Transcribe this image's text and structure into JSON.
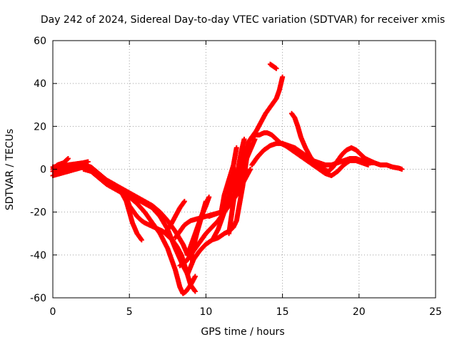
{
  "chart_data": {
    "type": "scatter",
    "title": "Day 242 of 2024, Sidereal Day-to-day VTEC variation (SDTVAR) for receiver xmis",
    "xlabel": "GPS time / hours",
    "ylabel": "SDTVAR / TECUs",
    "xlim": [
      0,
      25
    ],
    "ylim": [
      -60,
      60
    ],
    "xticks": [
      "0",
      "5",
      "10",
      "15",
      "20",
      "25"
    ],
    "yticks": [
      "-60",
      "-40",
      "-20",
      "0",
      "20",
      "40",
      "60"
    ],
    "grid": true,
    "marker": "+",
    "color": "#ff0000",
    "series": [
      {
        "name": "track-1",
        "x": [
          0.0,
          0.3,
          0.7,
          1.0
        ],
        "y": [
          0,
          2,
          3,
          5
        ]
      },
      {
        "name": "track-2",
        "x": [
          0.0,
          0.5,
          1.0,
          1.5,
          2.0,
          2.3
        ],
        "y": [
          1,
          1.5,
          2,
          2.5,
          3,
          3.5
        ]
      },
      {
        "name": "track-3",
        "x": [
          0.0,
          0.5,
          1.0,
          1.5,
          2.0,
          2.5,
          3.0,
          3.5,
          4.0,
          4.5,
          5.0,
          5.5,
          6.0,
          6.5,
          7.0,
          7.5,
          8.0,
          8.3,
          8.5,
          8.7,
          9.0,
          9.3
        ],
        "y": [
          -3,
          -2,
          -1,
          0,
          1,
          -1,
          -4,
          -7,
          -9,
          -11,
          -13,
          -16,
          -20,
          -25,
          -30,
          -37,
          -47,
          -55,
          -58,
          -57,
          -54,
          -50
        ]
      },
      {
        "name": "track-4",
        "x": [
          0.0,
          0.5,
          1.0,
          1.5,
          2.0,
          2.5,
          3.0,
          3.5,
          4.0,
          4.5,
          5.0,
          5.5,
          6.0,
          6.5,
          7.0,
          7.5,
          8.0,
          8.5,
          8.8
        ],
        "y": [
          -1,
          0,
          0.5,
          1,
          2,
          1,
          -2,
          -5,
          -8,
          -10,
          -12,
          -14,
          -16,
          -18,
          -22,
          -28,
          -37,
          -45,
          -49
        ]
      },
      {
        "name": "track-5",
        "x": [
          2.0,
          2.5,
          3.0,
          3.5,
          4.0,
          4.5,
          5.0,
          5.5,
          6.0,
          6.5,
          7.0,
          7.5,
          8.0,
          8.5,
          8.8
        ],
        "y": [
          0,
          -1,
          -3,
          -5,
          -7,
          -9,
          -11,
          -13,
          -15,
          -17,
          -20,
          -24,
          -29,
          -35,
          -40
        ]
      },
      {
        "name": "track-6",
        "x": [
          4.5,
          4.8,
          5.0,
          5.2,
          5.5,
          5.8
        ],
        "y": [
          -11,
          -15,
          -20,
          -25,
          -30,
          -33
        ]
      },
      {
        "name": "track-7",
        "x": [
          4.8,
          5.0,
          5.3,
          5.5,
          5.8,
          6.0,
          6.3,
          6.6,
          6.9,
          7.2,
          7.5,
          7.8,
          8.1,
          8.4,
          8.7,
          9.0,
          9.3
        ],
        "y": [
          -13,
          -17,
          -20,
          -22,
          -24,
          -25,
          -26,
          -27,
          -28,
          -29,
          -31,
          -33,
          -36,
          -40,
          -47,
          -54,
          -57
        ]
      },
      {
        "name": "track-8",
        "x": [
          7.4,
          7.7,
          8.0,
          8.3,
          8.6
        ],
        "y": [
          -29,
          -26,
          -22,
          -18,
          -15
        ]
      },
      {
        "name": "track-9",
        "x": [
          8.0,
          8.3,
          8.6,
          9.0,
          9.5,
          10.0,
          10.5,
          11.0,
          11.5,
          12.0,
          12.3,
          12.6,
          12.9,
          13.2
        ],
        "y": [
          -32,
          -29,
          -26,
          -24,
          -23,
          -22,
          -21,
          -20,
          -16,
          -10,
          -3,
          4,
          9,
          14
        ]
      },
      {
        "name": "track-10",
        "x": [
          8.3,
          8.7,
          9.0,
          9.3,
          9.6,
          10.0,
          10.4,
          10.8,
          11.2,
          11.6,
          12.0,
          12.3,
          12.6,
          12.9
        ],
        "y": [
          -45,
          -43,
          -40,
          -37,
          -34,
          -30,
          -27,
          -24,
          -20,
          -16,
          -12,
          -8,
          -4,
          0
        ]
      },
      {
        "name": "track-11",
        "x": [
          8.8,
          9.2,
          9.6,
          10.0,
          10.4,
          10.8,
          11.2,
          11.5,
          11.8,
          12.0,
          12.2,
          12.4,
          12.6,
          12.8
        ],
        "y": [
          -49,
          -42,
          -38,
          -35,
          -33,
          -32,
          -30,
          -29,
          -27,
          -24,
          -16,
          -8,
          2,
          12
        ]
      },
      {
        "name": "track-12",
        "x": [
          8.8,
          9.1,
          9.4,
          9.7,
          10.0,
          10.2
        ],
        "y": [
          -40,
          -34,
          -28,
          -22,
          -17,
          -13
        ]
      },
      {
        "name": "track-13",
        "x": [
          9.0,
          9.2,
          9.4,
          9.6,
          9.8,
          10.0
        ],
        "y": [
          -42,
          -36,
          -30,
          -25,
          -20,
          -15
        ]
      },
      {
        "name": "track-14",
        "x": [
          10.2,
          10.6,
          11.0,
          11.4,
          11.8,
          12.0,
          12.2,
          12.4,
          12.6,
          12.8,
          13.0,
          13.2,
          13.5,
          13.8,
          14.0,
          14.3,
          14.6,
          14.9,
          15.2,
          15.5,
          15.8
        ],
        "y": [
          -22,
          -21,
          -20,
          -18,
          -14,
          -10,
          -4,
          2,
          8,
          13,
          15,
          16,
          16,
          17,
          17,
          16,
          14,
          12,
          11,
          10,
          9
        ]
      },
      {
        "name": "track-15",
        "x": [
          10.5,
          10.8,
          11.0,
          11.3,
          11.6,
          11.9
        ],
        "y": [
          -32,
          -28,
          -24,
          -18,
          -10,
          0
        ]
      },
      {
        "name": "track-16",
        "x": [
          11.0,
          11.2,
          11.5,
          11.8,
          12.0
        ],
        "y": [
          -20,
          -12,
          -5,
          2,
          10
        ]
      },
      {
        "name": "track-17",
        "x": [
          11.5,
          11.7,
          11.9,
          12.1,
          12.3,
          12.5
        ],
        "y": [
          -30,
          -20,
          -10,
          0,
          8,
          14
        ]
      },
      {
        "name": "track-18",
        "x": [
          13.0,
          13.3,
          13.6,
          13.9,
          14.2,
          14.4,
          14.6,
          14.8,
          14.9,
          15.0
        ],
        "y": [
          15,
          18,
          22,
          26,
          29,
          31,
          33,
          37,
          40,
          43
        ]
      },
      {
        "name": "track-19",
        "x": [
          14.2,
          14.4,
          14.6
        ],
        "y": [
          49,
          48,
          47
        ]
      },
      {
        "name": "track-20",
        "x": [
          13.0,
          13.4,
          13.8,
          14.2,
          14.6,
          15.0,
          15.4,
          15.8,
          16.2,
          16.6,
          17.0,
          17.4,
          17.8,
          18.2,
          18.6,
          19.0,
          19.4,
          19.8,
          20.2,
          20.6,
          21.0,
          21.4,
          21.8,
          22.2,
          22.6,
          22.8
        ],
        "y": [
          2,
          6,
          9,
          11,
          12,
          12,
          11,
          10,
          8,
          6,
          4,
          3,
          2,
          2,
          3,
          4,
          5,
          5,
          4,
          3,
          3,
          2,
          2,
          1,
          0.5,
          0
        ]
      },
      {
        "name": "track-21",
        "x": [
          15.6,
          15.8,
          16.0,
          16.2,
          16.5,
          16.8,
          17.1,
          17.4,
          17.7,
          18.0,
          18.3,
          18.6,
          18.9,
          19.2,
          19.5,
          19.8,
          20.1,
          20.4,
          20.7,
          21.0
        ],
        "y": [
          26,
          24,
          20,
          15,
          10,
          6,
          3,
          1,
          0,
          -1,
          1,
          4,
          7,
          9,
          10,
          9,
          7,
          5,
          4,
          3
        ]
      },
      {
        "name": "track-22",
        "x": [
          15.0,
          15.4,
          15.8,
          16.2,
          16.6,
          17.0,
          17.4,
          17.8,
          18.2,
          18.6,
          19.0,
          19.4,
          19.8,
          20.2,
          20.6
        ],
        "y": [
          12,
          10,
          8,
          6,
          4,
          2,
          0,
          -2,
          -3,
          -1,
          2,
          4,
          4,
          3,
          2
        ]
      }
    ]
  }
}
